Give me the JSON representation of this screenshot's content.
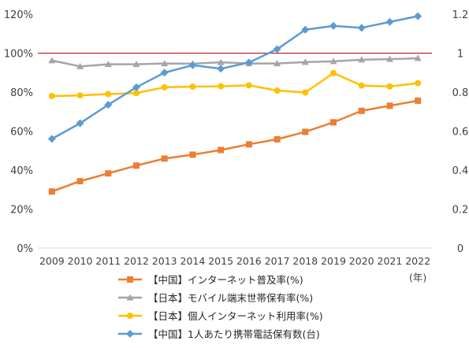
{
  "chart_data": {
    "type": "line",
    "categories": [
      "2009",
      "2010",
      "2011",
      "2012",
      "2013",
      "2014",
      "2015",
      "2016",
      "2017",
      "2018",
      "2019",
      "2020",
      "2021",
      "2022"
    ],
    "xunit": "(年)",
    "left_axis": {
      "min": 0,
      "max": 1.2,
      "step": 0.2,
      "tick_labels": [
        "0%",
        "20%",
        "40%",
        "60%",
        "80%",
        "100%",
        "120%"
      ]
    },
    "right_axis": {
      "min": 0,
      "max": 1.2,
      "step": 0.2,
      "tick_labels": [
        "0",
        "0.2",
        "0.4",
        "0.6",
        "0.8",
        "1",
        "1.2"
      ]
    },
    "reference_line": {
      "value": 1.0,
      "color": "#c00000"
    },
    "grid": false,
    "legend_position": "bottom",
    "series": [
      {
        "name": "【中国】インターネット普及率(%)",
        "axis": "left",
        "color": "#ed7d31",
        "marker": "square",
        "values": [
          0.29,
          0.343,
          0.383,
          0.423,
          0.459,
          0.479,
          0.503,
          0.532,
          0.558,
          0.596,
          0.645,
          0.704,
          0.73,
          0.756
        ]
      },
      {
        "name": "【日本】モバイル端末世帯保有率(%)",
        "axis": "left",
        "color": "#a5a5a5",
        "marker": "triangle",
        "values": [
          0.962,
          0.932,
          0.943,
          0.943,
          0.947,
          0.946,
          0.953,
          0.947,
          0.947,
          0.954,
          0.958,
          0.966,
          0.969,
          0.974
        ]
      },
      {
        "name": "【日本】個人インターネット利用率(%)",
        "axis": "left",
        "color": "#ffc000",
        "marker": "circle",
        "values": [
          0.78,
          0.783,
          0.79,
          0.795,
          0.825,
          0.828,
          0.83,
          0.835,
          0.808,
          0.798,
          0.898,
          0.834,
          0.829,
          0.846
        ]
      },
      {
        "name": "【中国】1人あたり携帯電話保有数(台)",
        "axis": "right",
        "color": "#5b9bd5",
        "marker": "diamond",
        "values": [
          0.56,
          0.64,
          0.735,
          0.825,
          0.9,
          0.938,
          0.92,
          0.952,
          1.02,
          1.12,
          1.14,
          1.13,
          1.16,
          1.19
        ]
      }
    ]
  }
}
